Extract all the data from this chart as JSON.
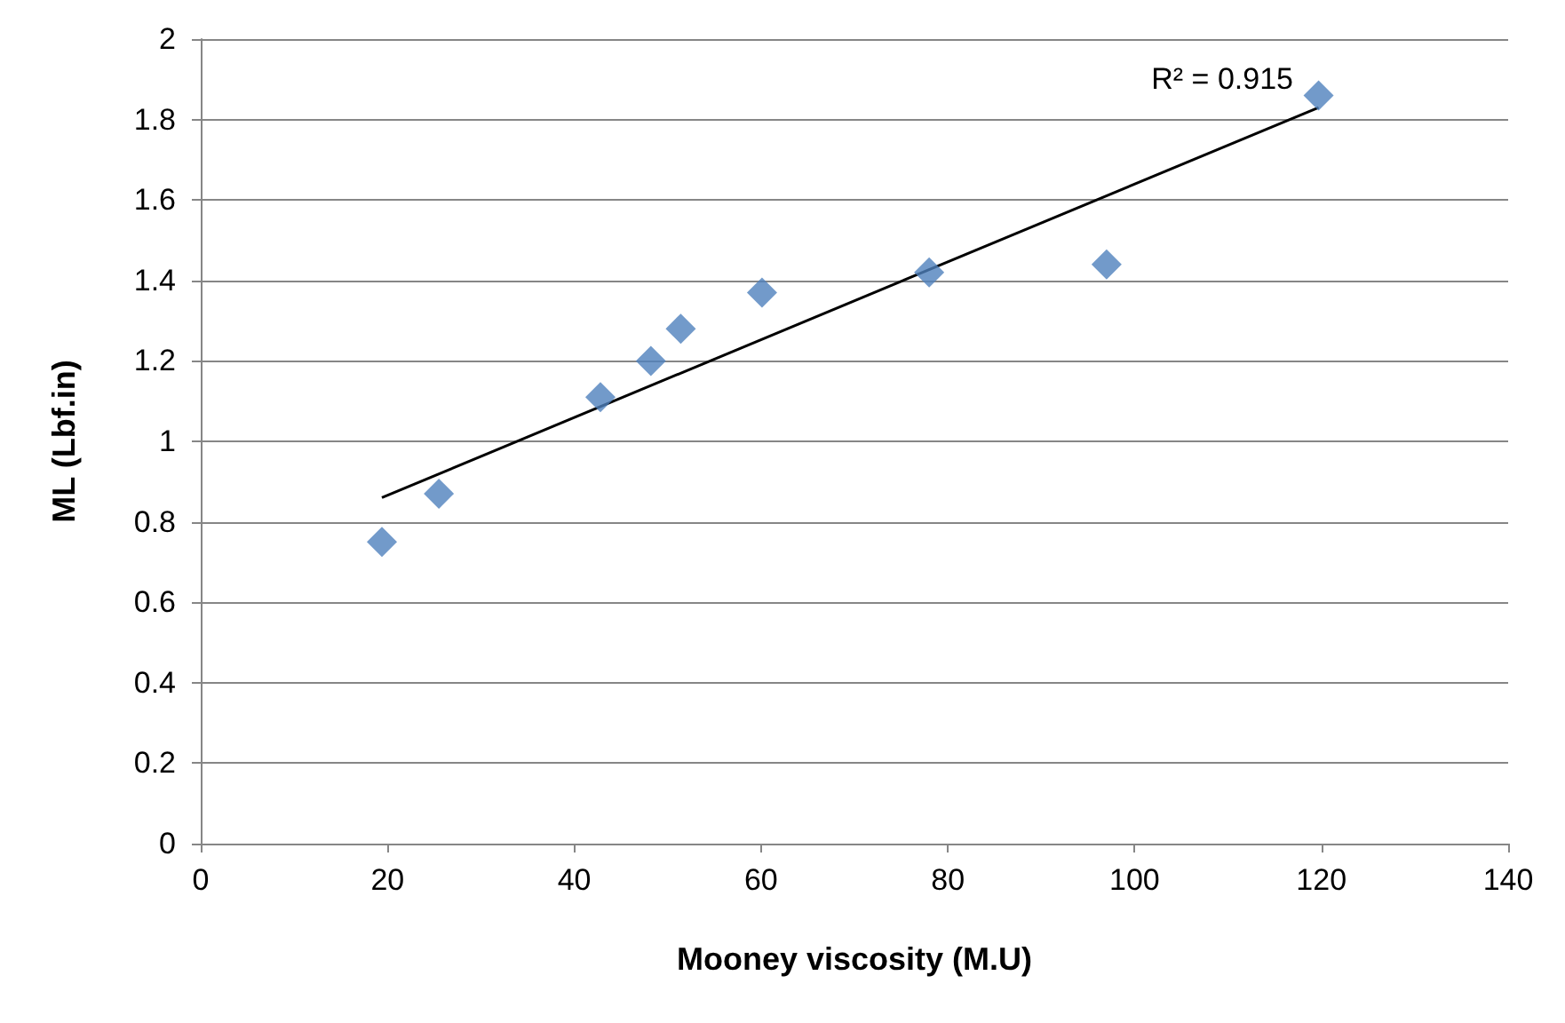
{
  "chart_data": {
    "type": "scatter",
    "xlabel": "Mooney viscosity (M.U)",
    "ylabel": "ML (Lbf.in)",
    "x": [
      19.4,
      25.5,
      42.8,
      48.2,
      51.4,
      60.1,
      78.0,
      97.0,
      119.7
    ],
    "series": [
      {
        "color": "#4f81bd",
        "marker": "diamond",
        "values": [
          0.75,
          0.87,
          1.11,
          1.2,
          1.28,
          1.37,
          1.42,
          1.44,
          1.86
        ]
      },
      {
        "type": "line",
        "color": "#000000",
        "x": [
          19.4,
          119.7
        ],
        "values": [
          0.86,
          1.83
        ]
      }
    ],
    "xlim": [
      0,
      140
    ],
    "xticks": [
      0,
      20,
      40,
      60,
      80,
      100,
      120,
      140
    ],
    "ylim": [
      0,
      2
    ],
    "yticks": [
      0,
      0.2,
      0.4,
      0.6,
      0.8,
      1,
      1.2,
      1.4,
      1.6,
      1.8,
      2
    ],
    "grid": "y",
    "annotations": [
      "R² = 0.915"
    ]
  }
}
